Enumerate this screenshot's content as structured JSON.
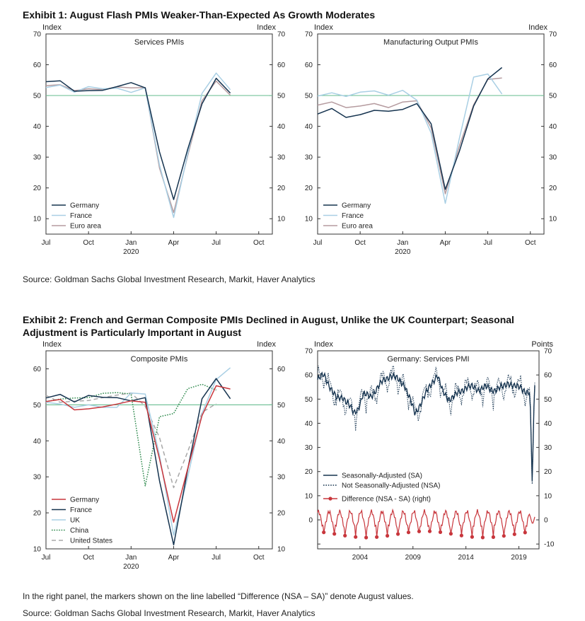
{
  "exhibit1": {
    "title": "Exhibit 1: August Flash PMIs Weaker-Than-Expected As Growth Moderates",
    "source": "Source: Goldman Sachs Global Investment Research, Markit, Haver Analytics"
  },
  "exhibit2": {
    "title_line1": "Exhibit 2: French and German Composite PMIs Declined in August, Unlike the UK Counterpart; Seasonal",
    "title_line2": "Adjustment is Particularly Important in August",
    "note": "In the right panel, the markers shown on the line labelled “Difference (NSA – SA)” denote August values.",
    "source": "Source: Goldman Sachs Global Investment Research, Markit, Haver Analytics"
  },
  "colors": {
    "germany": "#15334f",
    "france": "#a9cfe4",
    "euro_area": "#b59b9f",
    "germany_red": "#c8363c",
    "uk": "#a9cfe4",
    "china": "#2f8a4e",
    "united_states": "#a8a8a8",
    "reference_line": "#76c39a"
  },
  "chart_data": [
    {
      "id": "services",
      "type": "line",
      "title": "Services PMIs",
      "ylabel_left": "Index",
      "ylabel_right": "Index",
      "ylim": [
        5,
        70
      ],
      "yticks": [
        10,
        20,
        30,
        40,
        50,
        60,
        70
      ],
      "xlim": [
        2019.5,
        2020.83
      ],
      "xticks": [
        {
          "x": 2019.5,
          "label": "Jul"
        },
        {
          "x": 2019.75,
          "label": "Oct"
        },
        {
          "x": 2020.0,
          "label": "Jan",
          "sub": "2020"
        },
        {
          "x": 2020.25,
          "label": "Apr"
        },
        {
          "x": 2020.5,
          "label": "Jul"
        },
        {
          "x": 2020.75,
          "label": "Oct"
        }
      ],
      "reference_line": 50,
      "legend": "bottom-left",
      "x": [
        2019.5,
        2019.583,
        2019.667,
        2019.75,
        2019.833,
        2019.917,
        2020.0,
        2020.083,
        2020.167,
        2020.25,
        2020.333,
        2020.417,
        2020.5,
        2020.583
      ],
      "series": [
        {
          "name": "Germany",
          "color_key": "germany",
          "dash": "solid",
          "values": [
            54.5,
            54.8,
            51.4,
            51.6,
            51.7,
            52.9,
            54.2,
            52.5,
            31.7,
            16.2,
            32.6,
            47.3,
            55.6,
            50.8
          ]
        },
        {
          "name": "France",
          "color_key": "france",
          "dash": "solid",
          "values": [
            52.6,
            53.4,
            51.1,
            52.9,
            52.2,
            52.4,
            51.0,
            52.5,
            27.4,
            10.4,
            31.1,
            50.7,
            57.3,
            51.9
          ]
        },
        {
          "name": "Euro area",
          "color_key": "euro_area",
          "dash": "solid",
          "values": [
            53.2,
            53.5,
            51.6,
            52.2,
            51.9,
            52.8,
            52.5,
            52.6,
            26.4,
            12.0,
            30.5,
            48.3,
            54.7,
            50.1
          ]
        }
      ]
    },
    {
      "id": "manufacturing",
      "type": "line",
      "title": "Manufacturing Output PMIs",
      "ylabel_left": "Index",
      "ylabel_right": "Index",
      "ylim": [
        5,
        70
      ],
      "yticks": [
        10,
        20,
        30,
        40,
        50,
        60,
        70
      ],
      "xlim": [
        2019.5,
        2020.83
      ],
      "xticks": [
        {
          "x": 2019.5,
          "label": "Jul"
        },
        {
          "x": 2019.75,
          "label": "Oct"
        },
        {
          "x": 2020.0,
          "label": "Jan",
          "sub": "2020"
        },
        {
          "x": 2020.25,
          "label": "Apr"
        },
        {
          "x": 2020.5,
          "label": "Jul"
        },
        {
          "x": 2020.75,
          "label": "Oct"
        }
      ],
      "reference_line": 50,
      "legend": "bottom-left",
      "x": [
        2019.5,
        2019.583,
        2019.667,
        2019.75,
        2019.833,
        2019.917,
        2020.0,
        2020.083,
        2020.167,
        2020.25,
        2020.333,
        2020.417,
        2020.5,
        2020.583
      ],
      "series": [
        {
          "name": "Germany",
          "color_key": "germany",
          "dash": "solid",
          "values": [
            44.0,
            45.8,
            42.9,
            43.8,
            45.2,
            44.9,
            45.5,
            47.4,
            40.8,
            19.5,
            31.9,
            46.6,
            55.4,
            59.1
          ]
        },
        {
          "name": "France",
          "color_key": "france",
          "dash": "solid",
          "values": [
            49.8,
            50.9,
            49.7,
            51.1,
            51.5,
            50.1,
            51.7,
            48.5,
            37.8,
            15.0,
            36.1,
            56.0,
            57.0,
            50.5
          ]
        },
        {
          "name": "Euro area",
          "color_key": "euro_area",
          "dash": "solid",
          "values": [
            46.9,
            47.9,
            46.1,
            46.6,
            47.4,
            46.1,
            47.9,
            48.3,
            39.5,
            18.1,
            33.6,
            47.0,
            55.2,
            55.7
          ]
        }
      ]
    },
    {
      "id": "composite",
      "type": "line",
      "title": "Composite PMIs",
      "ylabel_left": "Index",
      "ylabel_right": "Index",
      "ylim": [
        10,
        65
      ],
      "yticks": [
        10,
        20,
        30,
        40,
        50,
        60
      ],
      "xlim": [
        2019.5,
        2020.83
      ],
      "xticks": [
        {
          "x": 2019.5,
          "label": "Jul"
        },
        {
          "x": 2019.75,
          "label": "Oct"
        },
        {
          "x": 2020.0,
          "label": "Jan",
          "sub": "2020"
        },
        {
          "x": 2020.25,
          "label": "Apr"
        },
        {
          "x": 2020.5,
          "label": "Jul"
        },
        {
          "x": 2020.75,
          "label": "Oct"
        }
      ],
      "reference_line": 50,
      "legend": "bottom-left",
      "x": [
        2019.5,
        2019.583,
        2019.667,
        2019.75,
        2019.833,
        2019.917,
        2020.0,
        2020.083,
        2020.167,
        2020.25,
        2020.333,
        2020.417,
        2020.5,
        2020.583,
        2020.667
      ],
      "series": [
        {
          "name": "Germany",
          "color_key": "germany_red",
          "dash": "solid",
          "values": [
            50.9,
            51.5,
            48.6,
            48.9,
            49.4,
            50.2,
            51.1,
            50.7,
            35.0,
            17.4,
            32.3,
            47.0,
            55.3,
            54.4,
            null
          ]
        },
        {
          "name": "France",
          "color_key": "germany",
          "dash": "solid",
          "values": [
            51.9,
            52.9,
            50.8,
            52.6,
            52.1,
            52.0,
            51.1,
            52.0,
            28.9,
            11.1,
            32.1,
            51.7,
            57.3,
            51.7,
            null
          ]
        },
        {
          "name": "UK",
          "color_key": "uk",
          "dash": "solid",
          "values": [
            50.7,
            50.2,
            49.3,
            50.0,
            49.3,
            49.3,
            53.3,
            53.0,
            36.0,
            13.8,
            30.0,
            47.7,
            57.0,
            60.3,
            null
          ]
        },
        {
          "name": "China",
          "color_key": "china",
          "dash": "dotted",
          "values": [
            50.9,
            51.6,
            51.9,
            52.0,
            53.2,
            53.4,
            53.0,
            27.5,
            46.7,
            47.6,
            54.5,
            55.7,
            54.1,
            null,
            null
          ]
        },
        {
          "name": "United States",
          "color_key": "united_states",
          "dash": "dashed",
          "values": [
            52.6,
            50.7,
            51.0,
            51.2,
            52.0,
            52.7,
            53.3,
            49.6,
            40.9,
            27.0,
            37.0,
            47.9,
            50.3,
            null,
            null
          ]
        }
      ]
    },
    {
      "id": "germany_services_sa",
      "type": "line",
      "title": "Germany: Services PMI",
      "ylabel_left": "Index",
      "ylabel_right": "Points",
      "ylim": [
        -12,
        70
      ],
      "yticks": [
        -10,
        0,
        10,
        20,
        30,
        40,
        50,
        60,
        70
      ],
      "xlim": [
        2000.0,
        2020.9
      ],
      "xticks": [
        {
          "x": 2004,
          "label": "2004"
        },
        {
          "x": 2009,
          "label": "2009"
        },
        {
          "x": 2014,
          "label": "2014"
        },
        {
          "x": 2019,
          "label": "2019"
        }
      ],
      "legend": "bottom-left",
      "series": [
        {
          "name": "Seasonally-Adjusted (SA)",
          "color_key": "germany",
          "dash": "solid"
        },
        {
          "name": "Not Seasonally-Adjusted (NSA)",
          "color_key": "germany",
          "dash": "dotted"
        },
        {
          "name": "Difference (NSA - SA) (right)",
          "color_key": "germany_red",
          "dash": "solid",
          "markers": "August values"
        }
      ],
      "sa_keypoints": [
        [
          2000.0,
          58
        ],
        [
          2000.6,
          60
        ],
        [
          2001.2,
          55
        ],
        [
          2001.8,
          50
        ],
        [
          2002.4,
          51
        ],
        [
          2002.9,
          48
        ],
        [
          2003.4,
          44
        ],
        [
          2003.8,
          46
        ],
        [
          2004.3,
          52
        ],
        [
          2005.0,
          51
        ],
        [
          2005.7,
          55
        ],
        [
          2006.3,
          58
        ],
        [
          2006.9,
          60
        ],
        [
          2007.6,
          58
        ],
        [
          2008.2,
          56
        ],
        [
          2008.7,
          50
        ],
        [
          2009.2,
          44
        ],
        [
          2009.7,
          48
        ],
        [
          2010.2,
          52
        ],
        [
          2010.8,
          57
        ],
        [
          2011.3,
          60
        ],
        [
          2011.8,
          53
        ],
        [
          2012.4,
          50
        ],
        [
          2012.9,
          51
        ],
        [
          2013.4,
          53
        ],
        [
          2014.0,
          55
        ],
        [
          2014.6,
          55
        ],
        [
          2015.2,
          54
        ],
        [
          2015.8,
          55
        ],
        [
          2016.4,
          54
        ],
        [
          2016.9,
          54
        ],
        [
          2017.5,
          55
        ],
        [
          2018.0,
          57
        ],
        [
          2018.6,
          55
        ],
        [
          2019.2,
          55
        ],
        [
          2019.7,
          53
        ],
        [
          2020.0,
          52.5
        ],
        [
          2020.1,
          45
        ],
        [
          2020.25,
          16.2
        ],
        [
          2020.35,
          32.6
        ],
        [
          2020.42,
          47.3
        ],
        [
          2020.5,
          55.6
        ]
      ],
      "diff_amplitude": 3.5,
      "diff_aug_low": -6
    }
  ]
}
